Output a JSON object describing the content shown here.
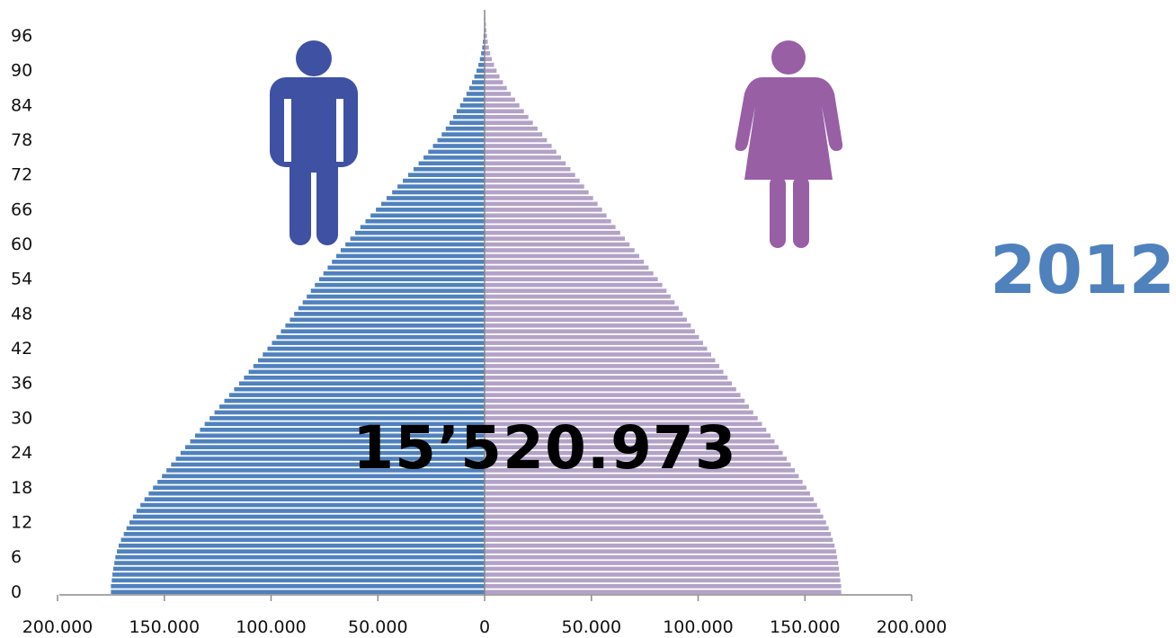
{
  "chart_data": {
    "type": "bar",
    "orientation": "horizontal-population-pyramid",
    "total_label": "15’520.973",
    "year_label": "2012",
    "y_ticks": [
      "0",
      "6",
      "12",
      "18",
      "24",
      "30",
      "36",
      "42",
      "48",
      "54",
      "60",
      "66",
      "72",
      "78",
      "84",
      "90",
      "96"
    ],
    "x_ticks": [
      "200.000",
      "150.000",
      "100.000",
      "50.000",
      "0",
      "50.000",
      "100.000",
      "150.000",
      "200.000"
    ],
    "xlim": [
      -200000,
      200000
    ],
    "ages": [
      0,
      100
    ],
    "series": [
      {
        "sex": "male",
        "color": "#4f81bd",
        "icon": "male-icon",
        "values": [
          175000,
          175000,
          174600,
          174300,
          173900,
          173400,
          172900,
          172200,
          171400,
          170300,
          169000,
          167700,
          166300,
          164700,
          163000,
          161200,
          159300,
          157300,
          155300,
          153200,
          151100,
          149000,
          146800,
          144600,
          142400,
          140200,
          137900,
          135600,
          133300,
          131100,
          128800,
          126500,
          124200,
          121900,
          119600,
          117300,
          115000,
          112700,
          110500,
          108300,
          106100,
          103900,
          101700,
          99600,
          97500,
          95400,
          93300,
          91200,
          89200,
          87200,
          85200,
          83300,
          81400,
          79500,
          77500,
          75500,
          73500,
          71500,
          69500,
          67400,
          65200,
          62900,
          60600,
          58200,
          55800,
          53400,
          50900,
          48400,
          45900,
          43300,
          40800,
          38300,
          35800,
          33300,
          30900,
          28600,
          26400,
          24200,
          22100,
          20100,
          18200,
          16400,
          14700,
          13100,
          11500,
          10000,
          8500,
          7200,
          5900,
          4800,
          3800,
          2900,
          2200,
          1600,
          1100,
          800,
          500,
          300,
          200,
          100,
          60
        ]
      },
      {
        "sex": "female",
        "color": "#b3a2c7",
        "icon": "female-icon",
        "values": [
          167000,
          167000,
          166600,
          166300,
          166000,
          165600,
          165100,
          164600,
          163900,
          163100,
          162200,
          161100,
          159900,
          158600,
          157200,
          155700,
          154100,
          152400,
          150700,
          148900,
          147100,
          145300,
          143400,
          141500,
          139600,
          137700,
          135800,
          133900,
          131900,
          129900,
          127900,
          125800,
          123800,
          121800,
          119800,
          117800,
          115800,
          113800,
          111800,
          109900,
          108000,
          106100,
          104200,
          102300,
          100400,
          98500,
          96600,
          94700,
          92800,
          90900,
          89000,
          87100,
          85200,
          83200,
          81100,
          79000,
          76800,
          74600,
          72400,
          70200,
          67900,
          65700,
          63500,
          61300,
          59200,
          57100,
          55000,
          52900,
          50800,
          48700,
          46600,
          44500,
          42400,
          40200,
          38000,
          35800,
          33600,
          31400,
          29200,
          27000,
          24800,
          22600,
          20500,
          18400,
          16300,
          14300,
          12300,
          10400,
          8600,
          7000,
          5600,
          4400,
          3400,
          2600,
          2000,
          1500,
          1100,
          800,
          600,
          400,
          250
        ]
      }
    ]
  }
}
